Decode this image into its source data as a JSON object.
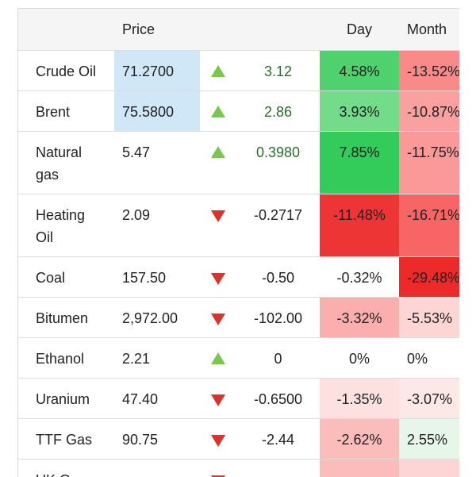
{
  "headers": {
    "name": "",
    "price": "Price",
    "change": "",
    "day": "Day",
    "month": "Month"
  },
  "colors": {
    "price_highlight": "#cfe7f7",
    "up_arrow": "#7ac74f",
    "down_arrow": "#d9342b"
  },
  "rows": [
    {
      "name": "Crude Oil",
      "price": "71.2700",
      "dir": "up",
      "change": "3.12",
      "day": "4.58%",
      "month": "-13.52%",
      "day_bg": "#4fd16e",
      "month_bg": "#fa8a8a",
      "price_bg": "#cfe7f7",
      "tall": false
    },
    {
      "name": "Brent",
      "price": "75.5800",
      "dir": "up",
      "change": "2.86",
      "day": "3.93%",
      "month": "-10.87%",
      "day_bg": "#72dc8b",
      "month_bg": "#fba0a0",
      "price_bg": "#cfe7f7",
      "tall": false
    },
    {
      "name": "Natural gas",
      "price": "5.47",
      "dir": "up",
      "change": "0.3980",
      "day": "7.85%",
      "month": "-11.75%",
      "day_bg": "#33cc5a",
      "month_bg": "#fb9999",
      "price_bg": "",
      "tall": true
    },
    {
      "name": "Heating Oil",
      "price": "2.09",
      "dir": "down",
      "change": "-0.2717",
      "day": "-11.48%",
      "month": "-16.71%",
      "day_bg": "#ee3535",
      "month_bg": "#f76565",
      "price_bg": "",
      "tall": true
    },
    {
      "name": "Coal",
      "price": "157.50",
      "dir": "down",
      "change": "-0.50",
      "day": "-0.32%",
      "month": "-29.48%",
      "day_bg": "#ffffff",
      "month_bg": "#ed2a2a",
      "price_bg": "",
      "tall": false
    },
    {
      "name": "Bitumen",
      "price": "2,972.00",
      "dir": "down",
      "change": "-102.00",
      "day": "-3.32%",
      "month": "-5.53%",
      "day_bg": "#fbaeae",
      "month_bg": "#fdd5d5",
      "price_bg": "",
      "tall": false
    },
    {
      "name": "Ethanol",
      "price": "2.21",
      "dir": "up",
      "change": "0",
      "day": "0%",
      "month": "0%",
      "day_bg": "#ffffff",
      "month_bg": "#ffffff",
      "price_bg": "",
      "tall": false
    },
    {
      "name": "Uranium",
      "price": "47.40",
      "dir": "down",
      "change": "-0.6500",
      "day": "-1.35%",
      "month": "-3.07%",
      "day_bg": "#fde0e0",
      "month_bg": "#fde8e8",
      "price_bg": "",
      "tall": false
    },
    {
      "name": "TTF Gas",
      "price": "90.75",
      "dir": "down",
      "change": "-2.44",
      "day": "-2.62%",
      "month": "2.55%",
      "day_bg": "#fbbcbc",
      "month_bg": "#e6f7e9",
      "price_bg": "",
      "tall": false
    },
    {
      "name": "UK Gas",
      "price": "",
      "dir": "down",
      "change": "",
      "day": "",
      "month": "",
      "day_bg": "#fbbcbc",
      "month_bg": "#fdd5d5",
      "price_bg": "",
      "tall": false
    }
  ]
}
